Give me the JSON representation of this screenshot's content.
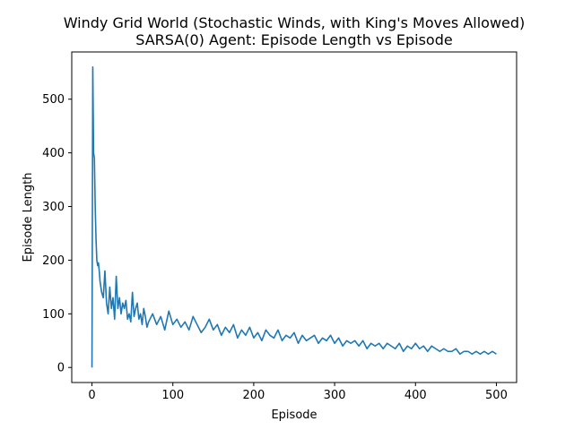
{
  "chart_data": {
    "type": "line",
    "title_line1": "Windy Grid World (Stochastic Winds, with King's Moves Allowed)",
    "title_line2": "SARSA(0) Agent: Episode Length vs Episode",
    "xlabel": "Episode",
    "ylabel": "Episode Length",
    "xlim": [
      -25,
      525
    ],
    "ylim": [
      -28,
      588
    ],
    "xticks": [
      0,
      100,
      200,
      300,
      400,
      500
    ],
    "yticks": [
      0,
      100,
      200,
      300,
      400,
      500
    ],
    "xtick_labels": [
      "0",
      "100",
      "200",
      "300",
      "400",
      "500"
    ],
    "ytick_labels": [
      "0",
      "100",
      "200",
      "300",
      "400",
      "500"
    ],
    "grid": false,
    "series_color": "#1f77b4",
    "series": [
      {
        "x": [
          0,
          1,
          2,
          3,
          4,
          5,
          6,
          7,
          8,
          9,
          10,
          12,
          14,
          16,
          18,
          20,
          22,
          24,
          26,
          28,
          30,
          32,
          34,
          36,
          38,
          40,
          42,
          44,
          46,
          48,
          50,
          52,
          54,
          56,
          58,
          60,
          62,
          64,
          66,
          68,
          70,
          75,
          80,
          85,
          90,
          95,
          100,
          105,
          110,
          115,
          120,
          125,
          130,
          135,
          140,
          145,
          150,
          155,
          160,
          165,
          170,
          175,
          180,
          185,
          190,
          195,
          200,
          205,
          210,
          215,
          220,
          225,
          230,
          235,
          240,
          245,
          250,
          255,
          260,
          265,
          270,
          275,
          280,
          285,
          290,
          295,
          300,
          305,
          310,
          315,
          320,
          325,
          330,
          335,
          340,
          345,
          350,
          355,
          360,
          365,
          370,
          375,
          380,
          385,
          390,
          395,
          400,
          405,
          410,
          415,
          420,
          425,
          430,
          435,
          440,
          445,
          450,
          455,
          460,
          465,
          470,
          475,
          480,
          485,
          490,
          495,
          500
        ],
        "y": [
          0,
          560,
          400,
          390,
          300,
          240,
          200,
          190,
          195,
          180,
          160,
          140,
          130,
          180,
          120,
          100,
          150,
          110,
          130,
          90,
          170,
          110,
          130,
          100,
          120,
          110,
          125,
          90,
          100,
          85,
          140,
          95,
          110,
          120,
          90,
          100,
          80,
          110,
          95,
          75,
          85,
          100,
          80,
          95,
          70,
          105,
          80,
          90,
          75,
          85,
          70,
          95,
          80,
          65,
          75,
          90,
          70,
          80,
          60,
          75,
          65,
          80,
          55,
          70,
          60,
          75,
          55,
          65,
          50,
          70,
          60,
          55,
          70,
          50,
          60,
          55,
          65,
          45,
          60,
          50,
          55,
          60,
          45,
          55,
          50,
          60,
          45,
          55,
          40,
          50,
          45,
          50,
          40,
          50,
          35,
          45,
          40,
          45,
          35,
          45,
          40,
          35,
          45,
          30,
          40,
          35,
          45,
          35,
          40,
          30,
          40,
          35,
          30,
          35,
          30,
          30,
          35,
          25,
          30,
          30,
          25,
          30,
          25,
          30,
          25,
          30,
          25
        ]
      }
    ]
  }
}
